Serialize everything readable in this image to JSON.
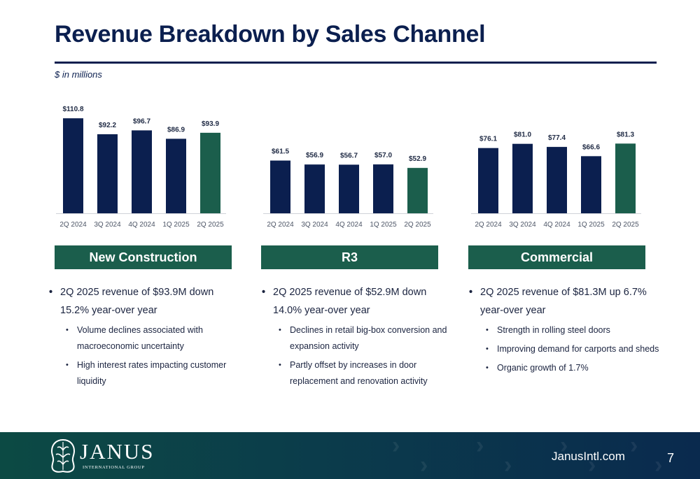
{
  "header": {
    "title": "Revenue Breakdown by Sales Channel",
    "subtitle": "$ in millions"
  },
  "colors": {
    "navy": "#0b1f4f",
    "green": "#1b5e4c",
    "axis": "#d0d3d8"
  },
  "chart_data": [
    {
      "type": "bar",
      "categories": [
        "2Q 2024",
        "3Q 2024",
        "4Q 2024",
        "1Q 2025",
        "2Q 2025"
      ],
      "values": [
        110.8,
        92.2,
        96.7,
        86.9,
        93.9
      ],
      "labels": [
        "$110.8",
        "$92.2",
        "$96.7",
        "$86.9",
        "$93.9"
      ],
      "highlight_index": 4,
      "ylim": [
        0,
        115
      ]
    },
    {
      "type": "bar",
      "categories": [
        "2Q 2024",
        "3Q 2024",
        "4Q 2024",
        "1Q 2025",
        "2Q 2025"
      ],
      "values": [
        61.5,
        56.9,
        56.7,
        57.0,
        52.9
      ],
      "labels": [
        "$61.5",
        "$56.9",
        "$56.7",
        "$57.0",
        "$52.9"
      ],
      "highlight_index": 4,
      "ylim": [
        0,
        115
      ]
    },
    {
      "type": "bar",
      "categories": [
        "2Q 2024",
        "3Q 2024",
        "4Q 2024",
        "1Q 2025",
        "2Q 2025"
      ],
      "values": [
        76.1,
        81.0,
        77.4,
        66.6,
        81.3
      ],
      "labels": [
        "$76.1",
        "$81.0",
        "$77.4",
        "$66.6",
        "$81.3"
      ],
      "highlight_index": 4,
      "ylim": [
        0,
        115
      ]
    }
  ],
  "sections": [
    {
      "name": "New Construction",
      "main": "2Q 2025 revenue of $93.9M down 15.2% year-over year",
      "subs": [
        "Volume declines associated with macroeconomic uncertainty",
        "High interest rates impacting customer liquidity"
      ]
    },
    {
      "name": "R3",
      "main": "2Q 2025 revenue of $52.9M down 14.0% year-over year",
      "subs": [
        "Declines in retail big-box conversion and expansion activity",
        "Partly offset by increases in door replacement and renovation activity"
      ]
    },
    {
      "name": "Commercial",
      "main": "2Q 2025 revenue of $81.3M up 6.7% year-over year",
      "subs": [
        "Strength in rolling steel doors",
        "Improving demand for carports and sheds",
        "Organic growth of 1.7%"
      ]
    }
  ],
  "footer": {
    "logo_text": "JANUS",
    "logo_subtext": "INTERNATIONAL GROUP",
    "url": "JanusIntl.com",
    "page_number": "7"
  }
}
